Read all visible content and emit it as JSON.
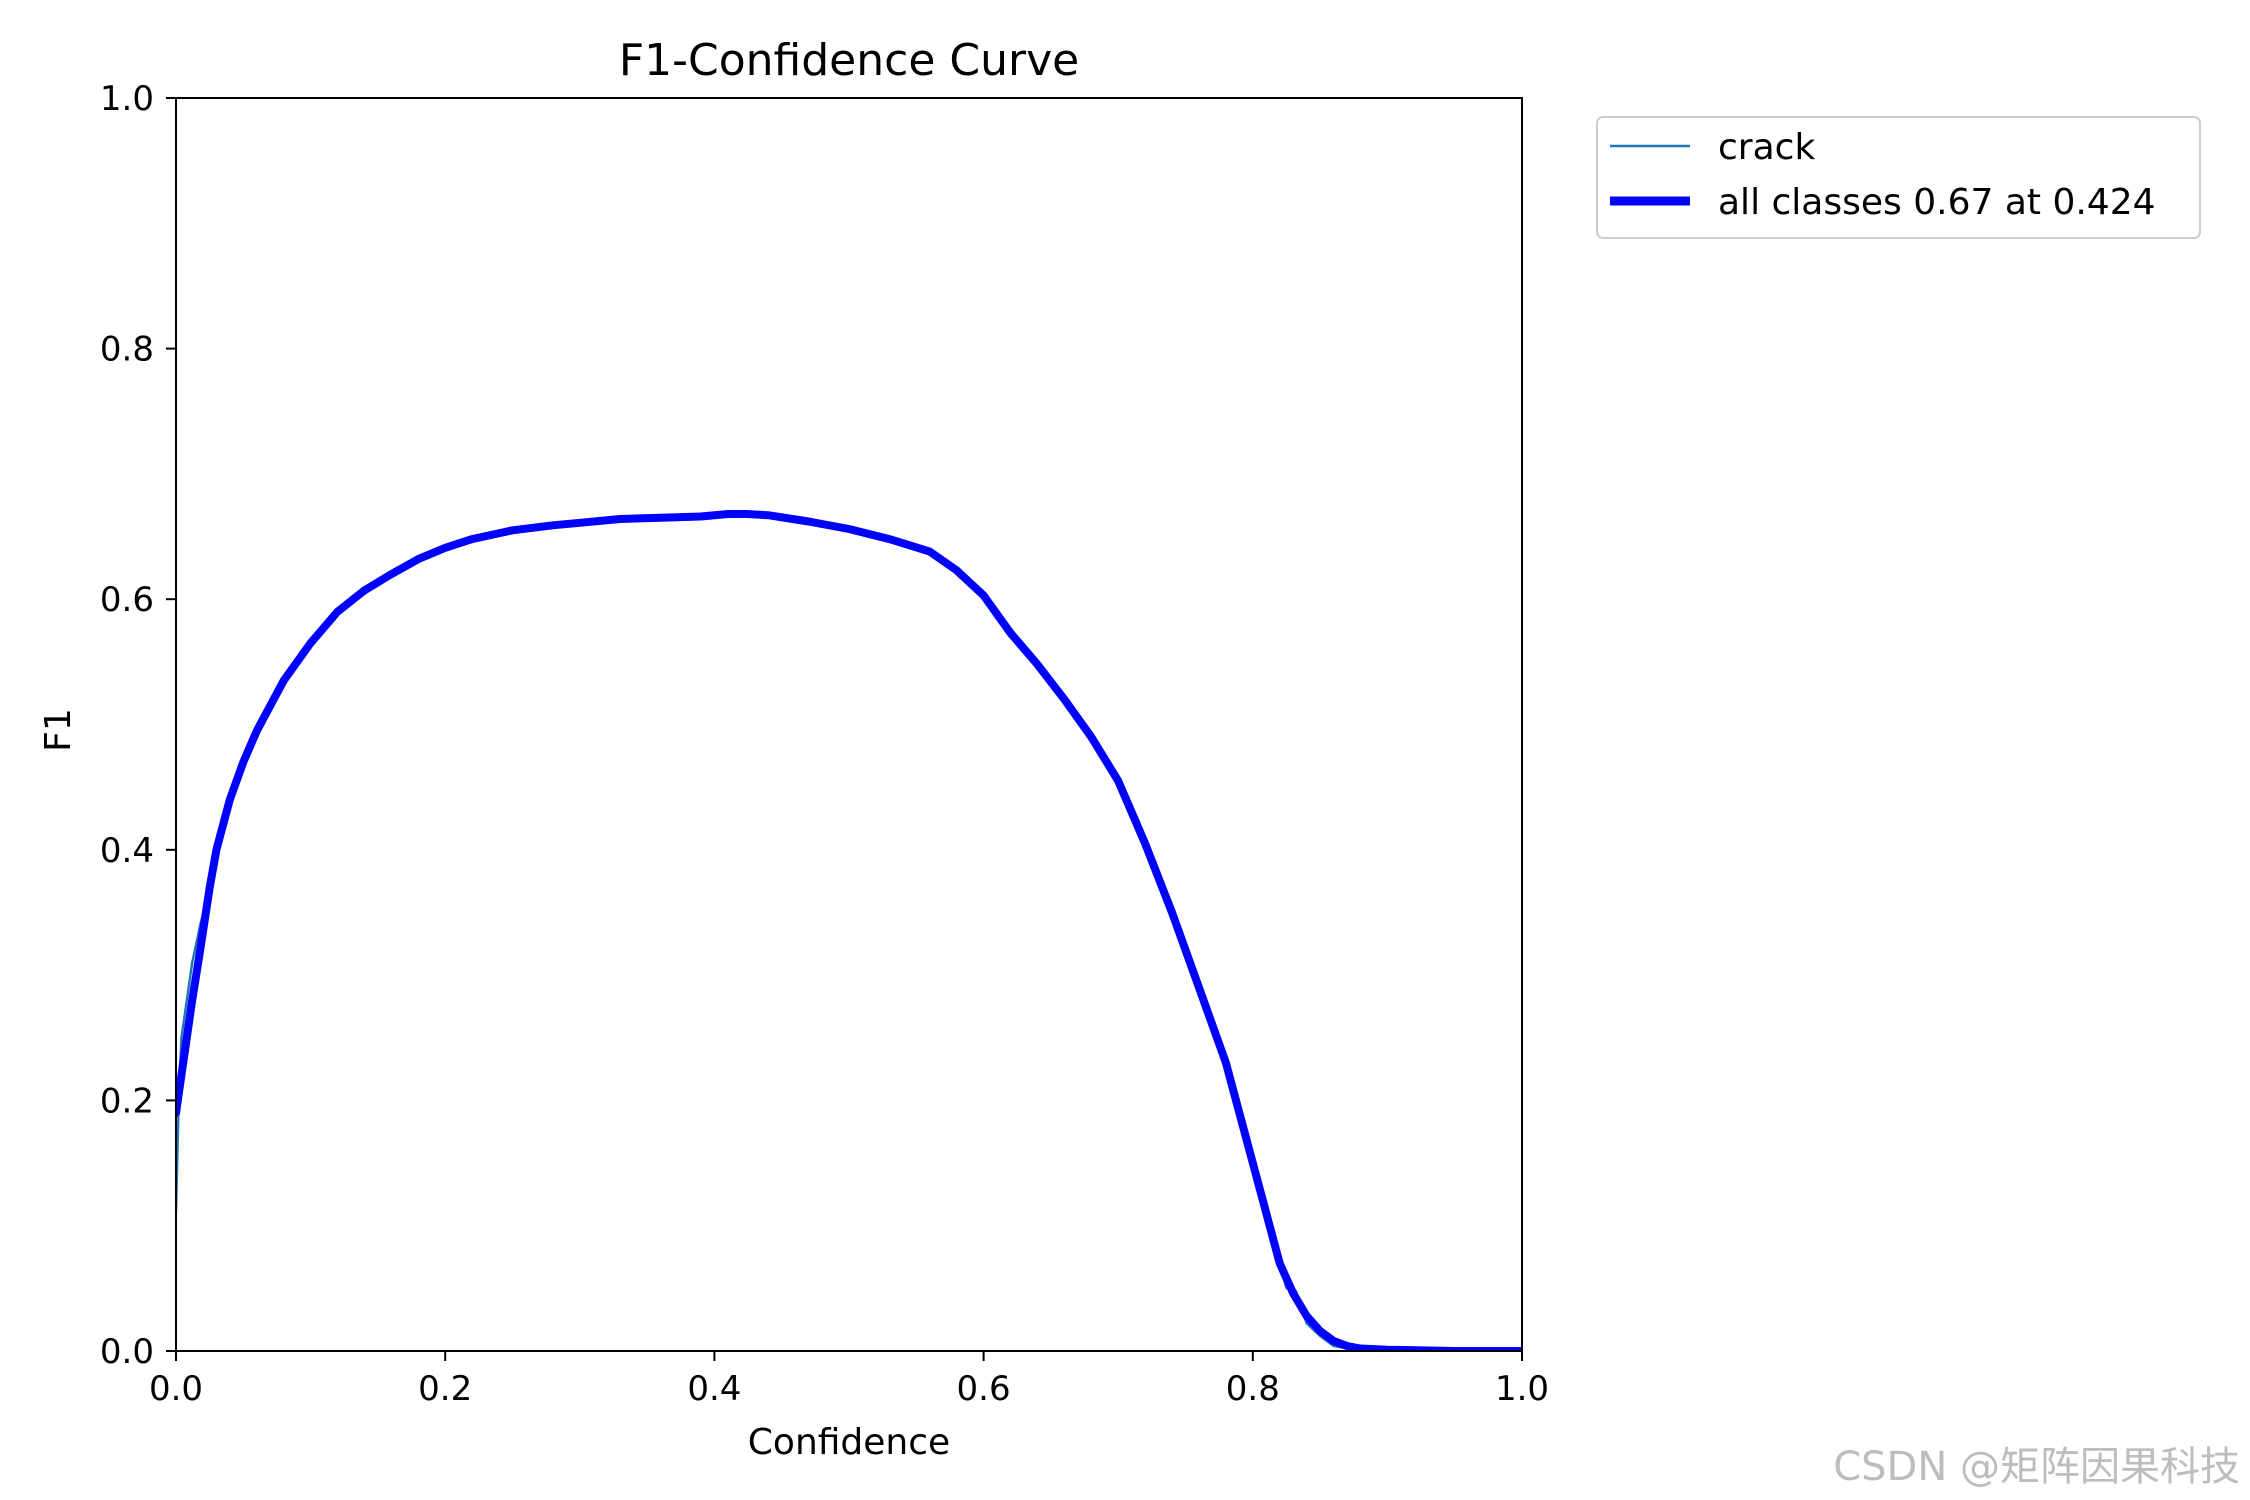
{
  "chart_data": {
    "type": "line",
    "title": "F1-Confidence Curve",
    "xlabel": "Confidence",
    "ylabel": "F1",
    "xlim": [
      0.0,
      1.0
    ],
    "ylim": [
      0.0,
      1.0
    ],
    "xticks": [
      "0.0",
      "0.2",
      "0.4",
      "0.6",
      "0.8",
      "1.0"
    ],
    "yticks": [
      "0.0",
      "0.2",
      "0.4",
      "0.6",
      "0.8",
      "1.0"
    ],
    "grid": false,
    "legend_position": "outside upper right",
    "series": [
      {
        "name": "crack",
        "color": "#1f77b4",
        "x": [
          0.0,
          0.002,
          0.004,
          0.008,
          0.012,
          0.018,
          0.025,
          0.03,
          0.04,
          0.05,
          0.06,
          0.08,
          0.1,
          0.12,
          0.14,
          0.16,
          0.18,
          0.2,
          0.22,
          0.25,
          0.28,
          0.3,
          0.33,
          0.36,
          0.39,
          0.41,
          0.424,
          0.44,
          0.47,
          0.5,
          0.53,
          0.56,
          0.58,
          0.6,
          0.62,
          0.64,
          0.66,
          0.68,
          0.7,
          0.72,
          0.74,
          0.76,
          0.78,
          0.8,
          0.82,
          0.825,
          0.832,
          0.84,
          0.85,
          0.86,
          0.87,
          0.88,
          0.9,
          0.95,
          1.0
        ],
        "y": [
          0.11,
          0.2,
          0.25,
          0.28,
          0.31,
          0.34,
          0.37,
          0.4,
          0.44,
          0.47,
          0.495,
          0.535,
          0.565,
          0.59,
          0.607,
          0.62,
          0.632,
          0.641,
          0.648,
          0.655,
          0.659,
          0.661,
          0.664,
          0.665,
          0.666,
          0.668,
          0.668,
          0.667,
          0.662,
          0.656,
          0.648,
          0.638,
          0.623,
          0.603,
          0.573,
          0.548,
          0.52,
          0.49,
          0.455,
          0.405,
          0.35,
          0.29,
          0.23,
          0.15,
          0.07,
          0.05,
          0.048,
          0.022,
          0.012,
          0.004,
          0.002,
          0.001,
          0.0,
          0.0,
          0.0
        ]
      },
      {
        "name": "all classes 0.67 at 0.424",
        "color": "#0000ff",
        "x": [
          0.0,
          0.004,
          0.008,
          0.012,
          0.018,
          0.025,
          0.03,
          0.04,
          0.05,
          0.06,
          0.08,
          0.1,
          0.12,
          0.14,
          0.16,
          0.18,
          0.2,
          0.22,
          0.25,
          0.28,
          0.3,
          0.33,
          0.36,
          0.39,
          0.41,
          0.424,
          0.44,
          0.47,
          0.5,
          0.53,
          0.56,
          0.58,
          0.6,
          0.62,
          0.64,
          0.66,
          0.68,
          0.7,
          0.72,
          0.74,
          0.76,
          0.78,
          0.8,
          0.82,
          0.83,
          0.84,
          0.85,
          0.86,
          0.87,
          0.88,
          0.9,
          0.95,
          1.0
        ],
        "y": [
          0.19,
          0.22,
          0.25,
          0.28,
          0.32,
          0.37,
          0.4,
          0.44,
          0.47,
          0.495,
          0.535,
          0.565,
          0.59,
          0.607,
          0.62,
          0.632,
          0.641,
          0.648,
          0.655,
          0.659,
          0.661,
          0.664,
          0.665,
          0.666,
          0.668,
          0.668,
          0.667,
          0.662,
          0.656,
          0.648,
          0.638,
          0.623,
          0.603,
          0.573,
          0.548,
          0.52,
          0.49,
          0.455,
          0.405,
          0.35,
          0.29,
          0.23,
          0.15,
          0.07,
          0.046,
          0.028,
          0.016,
          0.008,
          0.004,
          0.002,
          0.001,
          0.0,
          0.0
        ]
      }
    ]
  },
  "watermark": "CSDN @矩阵因果科技"
}
